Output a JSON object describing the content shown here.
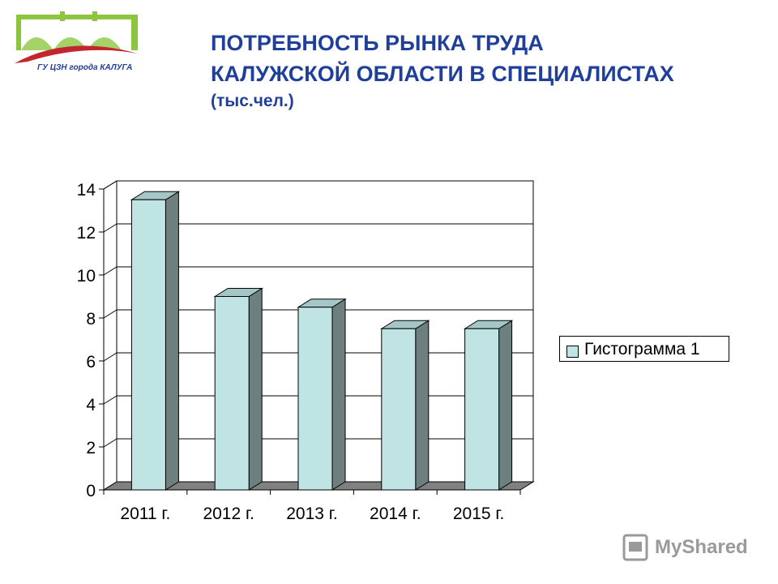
{
  "header": {
    "title_line1": "ПОТРЕБНОСТЬ РЫНКА ТРУДА",
    "title_line2": "КАЛУЖСКОЙ ОБЛАСТИ В СПЕЦИАЛИСТАХ",
    "unit": "(тыс.чел.)"
  },
  "logo": {
    "text": "ГУ ЦЗН города КАЛУГА"
  },
  "watermark": {
    "text": "MyShared"
  },
  "colors": {
    "title": "#1f3f9a",
    "bar_front": "#c0e4e4",
    "bar_side": "#6e7f7f",
    "bar_top": "#a4c6c6"
  },
  "chart_data": {
    "type": "bar",
    "categories": [
      "2011 г.",
      "2012 г.",
      "2013 г.",
      "2014 г.",
      "2015 г."
    ],
    "series": [
      {
        "name": "Гистограмма 1",
        "values": [
          13.5,
          9.0,
          8.5,
          7.5,
          7.5
        ]
      }
    ],
    "title": "",
    "xlabel": "",
    "ylabel": "",
    "ylim": [
      0,
      14
    ],
    "yticks": [
      "0",
      "2",
      "4",
      "6",
      "8",
      "10",
      "12",
      "14"
    ],
    "grid": true,
    "legend_position": "right",
    "style": "3d-column"
  }
}
